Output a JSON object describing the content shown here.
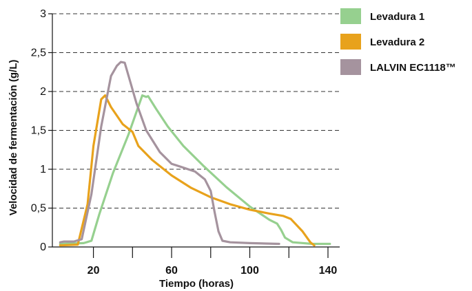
{
  "chart_data": {
    "type": "line",
    "title": "",
    "xlabel": "Tiempo (horas)",
    "ylabel": "Velocidad de fermentación (g/L)",
    "xlim": [
      -1,
      146
    ],
    "ylim": [
      0,
      3
    ],
    "x_ticks": [
      20,
      60,
      100,
      140
    ],
    "x_minor_ticks": [
      40,
      80,
      120
    ],
    "y_ticks": [
      {
        "value": 0,
        "label": "0"
      },
      {
        "value": 0.5,
        "label": "0,5"
      },
      {
        "value": 1,
        "label": "1"
      },
      {
        "value": 1.5,
        "label": "1,5"
      },
      {
        "value": 2,
        "label": "2"
      },
      {
        "value": 2.5,
        "label": "2,5"
      },
      {
        "value": 3,
        "label": "3"
      }
    ],
    "grid": "horizontal dashed",
    "legend_position": "right",
    "series": [
      {
        "name": "Levadura 1",
        "color": "#96d08f",
        "points": [
          [
            3,
            0.04
          ],
          [
            15,
            0.05
          ],
          [
            19,
            0.08
          ],
          [
            23,
            0.42
          ],
          [
            30,
            0.95
          ],
          [
            38,
            1.45
          ],
          [
            45,
            1.95
          ],
          [
            47,
            1.93
          ],
          [
            48,
            1.94
          ],
          [
            52,
            1.78
          ],
          [
            58,
            1.55
          ],
          [
            66,
            1.3
          ],
          [
            76,
            1.05
          ],
          [
            88,
            0.77
          ],
          [
            100,
            0.52
          ],
          [
            110,
            0.35
          ],
          [
            114,
            0.3
          ],
          [
            116,
            0.22
          ],
          [
            118,
            0.12
          ],
          [
            122,
            0.06
          ],
          [
            132,
            0.04
          ],
          [
            141,
            0.04
          ]
        ]
      },
      {
        "name": "Levadura 2",
        "color": "#e8a21c",
        "points": [
          [
            3,
            0.02
          ],
          [
            12,
            0.03
          ],
          [
            17,
            0.55
          ],
          [
            20,
            1.3
          ],
          [
            24,
            1.9
          ],
          [
            26,
            1.95
          ],
          [
            29,
            1.8
          ],
          [
            35,
            1.58
          ],
          [
            40,
            1.48
          ],
          [
            43,
            1.3
          ],
          [
            50,
            1.12
          ],
          [
            60,
            0.92
          ],
          [
            70,
            0.76
          ],
          [
            80,
            0.64
          ],
          [
            90,
            0.55
          ],
          [
            100,
            0.48
          ],
          [
            110,
            0.43
          ],
          [
            117,
            0.4
          ],
          [
            121,
            0.36
          ],
          [
            127,
            0.2
          ],
          [
            131,
            0.06
          ],
          [
            133,
            0.02
          ]
        ]
      },
      {
        "name": "LALVIN EC1118™",
        "color": "#a5939e",
        "points": [
          [
            3,
            0.06
          ],
          [
            5,
            0.07
          ],
          [
            10,
            0.07
          ],
          [
            14,
            0.1
          ],
          [
            19,
            0.68
          ],
          [
            24,
            1.55
          ],
          [
            29,
            2.2
          ],
          [
            32,
            2.33
          ],
          [
            34,
            2.38
          ],
          [
            36,
            2.37
          ],
          [
            38,
            2.2
          ],
          [
            42,
            1.85
          ],
          [
            47,
            1.5
          ],
          [
            54,
            1.22
          ],
          [
            60,
            1.07
          ],
          [
            66,
            1.02
          ],
          [
            72,
            0.97
          ],
          [
            77,
            0.87
          ],
          [
            80,
            0.72
          ],
          [
            82,
            0.45
          ],
          [
            84,
            0.2
          ],
          [
            86,
            0.08
          ],
          [
            90,
            0.06
          ],
          [
            100,
            0.05
          ],
          [
            115,
            0.04
          ]
        ]
      }
    ]
  }
}
